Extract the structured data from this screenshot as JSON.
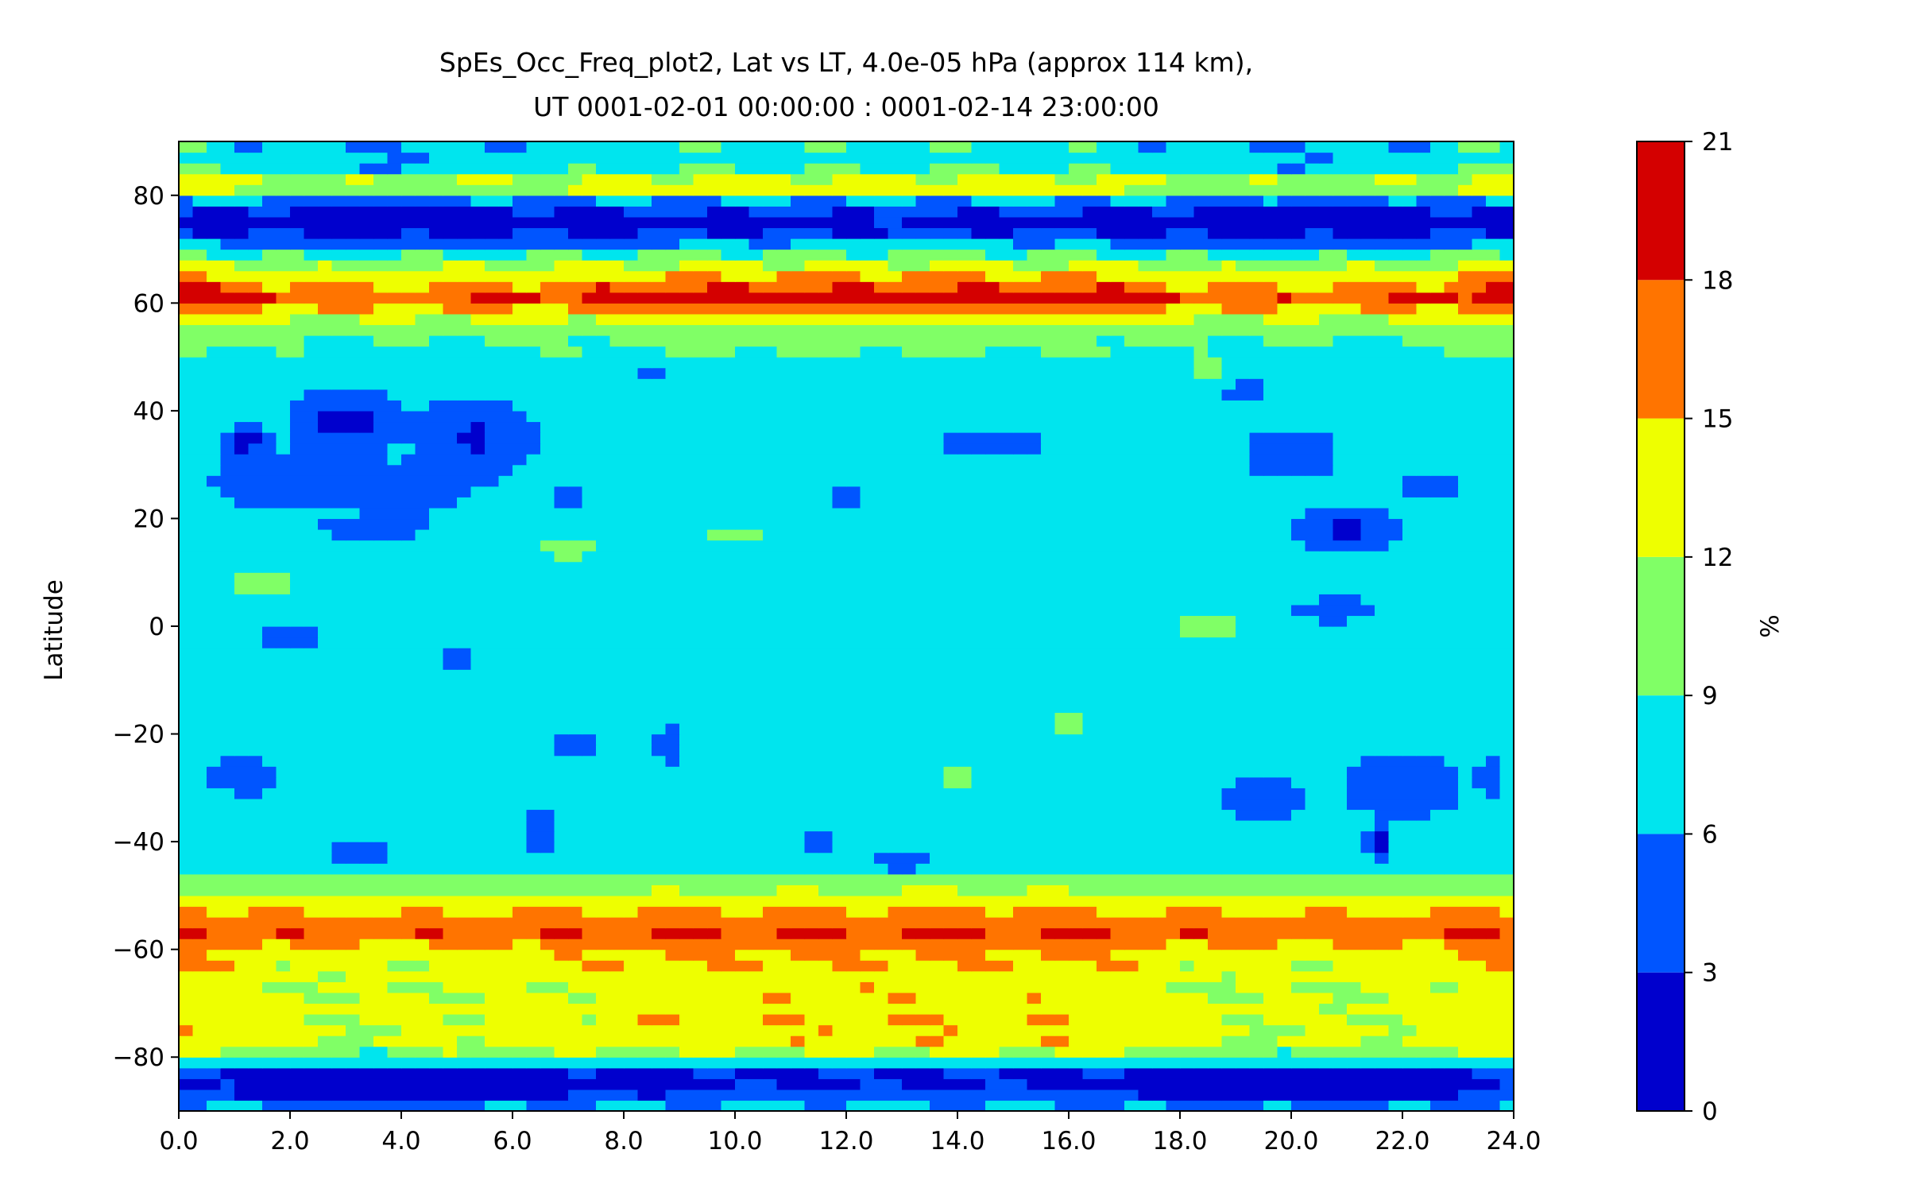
{
  "chart_data": {
    "type": "heatmap",
    "title_line1": "SpEs_Occ_Freq_plot2, Lat vs LT, 4.0e-05 hPa (approx 114 km),",
    "title_line2": "UT 0001-02-01 00:00:00 : 0001-02-14 23:00:00",
    "xlabel": "",
    "ylabel": "Latitude",
    "xlim": [
      0,
      24
    ],
    "ylim": [
      -90,
      90
    ],
    "x_ticks": [
      "0.0",
      "2.0",
      "4.0",
      "6.0",
      "8.0",
      "10.0",
      "12.0",
      "14.0",
      "16.0",
      "18.0",
      "20.0",
      "22.0",
      "24.0"
    ],
    "y_ticks": [
      "−80",
      "−60",
      "−40",
      "−20",
      "0",
      "20",
      "40",
      "60",
      "80"
    ],
    "colorbar": {
      "label": "%",
      "levels": [
        0,
        3,
        6,
        9,
        12,
        15,
        18,
        21
      ],
      "tick_labels": [
        "0",
        "3",
        "6",
        "9",
        "12",
        "15",
        "18",
        "21"
      ],
      "colors": [
        "#0000cd",
        "#0055ff",
        "#00e5ee",
        "#80ff66",
        "#eeff00",
        "#ff7400",
        "#d40000"
      ]
    },
    "latitude_profile": [
      {
        "lat": -90,
        "value": 7.0
      },
      {
        "lat": -88,
        "value": 4.5
      },
      {
        "lat": -86,
        "value": 1.5
      },
      {
        "lat": -83,
        "value": 2.0
      },
      {
        "lat": -81,
        "value": 7.5
      },
      {
        "lat": -78,
        "value": 13.5
      },
      {
        "lat": -73,
        "value": 13.5
      },
      {
        "lat": -67,
        "value": 13.0
      },
      {
        "lat": -61,
        "value": 14.5
      },
      {
        "lat": -56,
        "value": 18.5
      },
      {
        "lat": -52,
        "value": 14.0
      },
      {
        "lat": -48,
        "value": 11.0
      },
      {
        "lat": -44,
        "value": 7.5
      },
      {
        "lat": -20,
        "value": 7.0
      },
      {
        "lat": 0,
        "value": 7.5
      },
      {
        "lat": 20,
        "value": 7.0
      },
      {
        "lat": 44,
        "value": 7.0
      },
      {
        "lat": 53,
        "value": 9.5
      },
      {
        "lat": 57,
        "value": 13.0
      },
      {
        "lat": 61,
        "value": 18.5
      },
      {
        "lat": 66,
        "value": 13.5
      },
      {
        "lat": 70,
        "value": 7.5
      },
      {
        "lat": 72,
        "value": 3.5
      },
      {
        "lat": 75,
        "value": 1.5
      },
      {
        "lat": 78,
        "value": 3.5
      },
      {
        "lat": 80,
        "value": 8.0
      },
      {
        "lat": 82,
        "value": 16.0
      },
      {
        "lat": 84,
        "value": 8.5
      },
      {
        "lat": 87,
        "value": 7.5
      },
      {
        "lat": 90,
        "value": 7.5
      }
    ],
    "lt_modulation": [
      {
        "lt": 0,
        "amp": 1.0
      },
      {
        "lt": 3,
        "amp": -1.5
      },
      {
        "lt": 6,
        "amp": -0.5
      },
      {
        "lt": 9,
        "amp": 0.5
      },
      {
        "lt": 13,
        "amp": 0.8
      },
      {
        "lt": 16,
        "amp": 0.6
      },
      {
        "lt": 19,
        "amp": -1.2
      },
      {
        "lt": 22,
        "amp": -1.0
      },
      {
        "lt": 24,
        "amp": 1.0
      }
    ],
    "features": [
      {
        "lt": 1.2,
        "lat": 34,
        "value": 1.2,
        "w": 0.6,
        "h": 4
      },
      {
        "lt": 3.0,
        "lat": 38,
        "value": 2.0,
        "w": 1.3,
        "h": 8
      },
      {
        "lt": 2.0,
        "lat": 27,
        "value": 4.0,
        "w": 2.0,
        "h": 8
      },
      {
        "lt": 5.3,
        "lat": 35,
        "value": 2.5,
        "w": 1.4,
        "h": 9
      },
      {
        "lt": 4.2,
        "lat": 26,
        "value": 4.0,
        "w": 1.5,
        "h": 7
      },
      {
        "lt": 3.5,
        "lat": 18,
        "value": 4.5,
        "w": 1.5,
        "h": 4
      },
      {
        "lt": 7.0,
        "lat": 24,
        "value": 4.5,
        "w": 0.6,
        "h": 4
      },
      {
        "lt": 8.5,
        "lat": 48,
        "value": 5.0,
        "w": 0.4,
        "h": 4
      },
      {
        "lt": 7.0,
        "lat": 15,
        "value": 10.5,
        "w": 0.9,
        "h": 4
      },
      {
        "lt": 10.0,
        "lat": 17,
        "value": 10.3,
        "w": 1.2,
        "h": 4
      },
      {
        "lt": 12.0,
        "lat": 24,
        "value": 4.5,
        "w": 0.5,
        "h": 2
      },
      {
        "lt": 14.6,
        "lat": 34,
        "value": 4.5,
        "w": 1.5,
        "h": 3
      },
      {
        "lt": 18.5,
        "lat": 48,
        "value": 10.3,
        "w": 0.5,
        "h": 3
      },
      {
        "lt": 19.2,
        "lat": 44,
        "value": 4.5,
        "w": 0.6,
        "h": 3
      },
      {
        "lt": 20.0,
        "lat": 32,
        "value": 4.0,
        "w": 1.2,
        "h": 7
      },
      {
        "lt": 21.0,
        "lat": 18,
        "value": 2.5,
        "w": 1.2,
        "h": 6
      },
      {
        "lt": 20.8,
        "lat": 3,
        "value": 4.5,
        "w": 1.2,
        "h": 4
      },
      {
        "lt": 22.5,
        "lat": 26,
        "value": 4.5,
        "w": 0.8,
        "h": 4
      },
      {
        "lt": 2.0,
        "lat": -2,
        "value": 4.5,
        "w": 1.2,
        "h": 3
      },
      {
        "lt": 5.0,
        "lat": -6,
        "value": 4.5,
        "w": 0.6,
        "h": 4
      },
      {
        "lt": 1.5,
        "lat": 8,
        "value": 10.3,
        "w": 1.0,
        "h": 3
      },
      {
        "lt": 1.0,
        "lat": -28,
        "value": 1.5,
        "w": 0.4,
        "h": 3
      },
      {
        "lt": 1.2,
        "lat": -28,
        "value": 4.0,
        "w": 1.0,
        "h": 5
      },
      {
        "lt": 3.2,
        "lat": -42,
        "value": 4.5,
        "w": 1.0,
        "h": 3
      },
      {
        "lt": 6.5,
        "lat": -38,
        "value": 4.5,
        "w": 0.5,
        "h": 8
      },
      {
        "lt": 7.2,
        "lat": -22,
        "value": 4.5,
        "w": 0.6,
        "h": 4
      },
      {
        "lt": 8.8,
        "lat": -22,
        "value": 4.5,
        "w": 0.3,
        "h": 6
      },
      {
        "lt": 11.5,
        "lat": -40,
        "value": 4.5,
        "w": 1.0,
        "h": 2
      },
      {
        "lt": 13.0,
        "lat": -44,
        "value": 4.5,
        "w": 1.0,
        "h": 3
      },
      {
        "lt": 14.0,
        "lat": -28,
        "value": 10.3,
        "w": 0.6,
        "h": 3
      },
      {
        "lt": 16.0,
        "lat": -18,
        "value": 10.3,
        "w": 0.9,
        "h": 4
      },
      {
        "lt": 18.5,
        "lat": 0,
        "value": 10.3,
        "w": 1.0,
        "h": 5
      },
      {
        "lt": 19.5,
        "lat": -32,
        "value": 4.5,
        "w": 1.2,
        "h": 8
      },
      {
        "lt": 22.0,
        "lat": -30,
        "value": 3.0,
        "w": 1.5,
        "h": 8
      },
      {
        "lt": 21.6,
        "lat": -40,
        "value": 1.5,
        "w": 0.3,
        "h": 4
      },
      {
        "lt": 23.6,
        "lat": -28,
        "value": 2.5,
        "w": 0.3,
        "h": 4
      }
    ]
  }
}
